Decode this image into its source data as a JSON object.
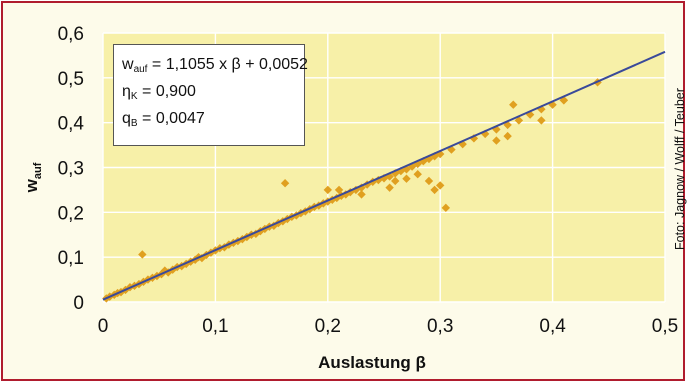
{
  "chart_data": {
    "type": "scatter",
    "title": "",
    "xlabel": "Auslastung β",
    "ylabel": {
      "main": "w",
      "sub": "auf"
    },
    "xlim": [
      0,
      0.5
    ],
    "ylim": [
      0,
      0.6
    ],
    "x_ticks": [
      "0",
      "0,1",
      "0,2",
      "0,3",
      "0,4",
      "0,5"
    ],
    "y_ticks": [
      "0",
      "0,1",
      "0,2",
      "0,3",
      "0,4",
      "0,5",
      "0,6"
    ],
    "grid": true,
    "series": [
      {
        "marker": "diamond",
        "color": "#e0a020",
        "points": [
          [
            0.003,
            0.008
          ],
          [
            0.006,
            0.012
          ],
          [
            0.01,
            0.016
          ],
          [
            0.013,
            0.02
          ],
          [
            0.016,
            0.022
          ],
          [
            0.02,
            0.027
          ],
          [
            0.024,
            0.033
          ],
          [
            0.028,
            0.036
          ],
          [
            0.032,
            0.04
          ],
          [
            0.035,
            0.106
          ],
          [
            0.036,
            0.045
          ],
          [
            0.04,
            0.05
          ],
          [
            0.044,
            0.054
          ],
          [
            0.048,
            0.058
          ],
          [
            0.052,
            0.062
          ],
          [
            0.055,
            0.07
          ],
          [
            0.058,
            0.066
          ],
          [
            0.062,
            0.072
          ],
          [
            0.066,
            0.078
          ],
          [
            0.07,
            0.08
          ],
          [
            0.074,
            0.085
          ],
          [
            0.078,
            0.09
          ],
          [
            0.082,
            0.094
          ],
          [
            0.085,
            0.1
          ],
          [
            0.088,
            0.098
          ],
          [
            0.092,
            0.105
          ],
          [
            0.096,
            0.11
          ],
          [
            0.1,
            0.115
          ],
          [
            0.104,
            0.12
          ],
          [
            0.108,
            0.122
          ],
          [
            0.112,
            0.128
          ],
          [
            0.116,
            0.132
          ],
          [
            0.12,
            0.136
          ],
          [
            0.124,
            0.14
          ],
          [
            0.128,
            0.145
          ],
          [
            0.132,
            0.15
          ],
          [
            0.136,
            0.152
          ],
          [
            0.14,
            0.158
          ],
          [
            0.144,
            0.163
          ],
          [
            0.148,
            0.168
          ],
          [
            0.152,
            0.17
          ],
          [
            0.156,
            0.176
          ],
          [
            0.16,
            0.18
          ],
          [
            0.164,
            0.185
          ],
          [
            0.168,
            0.19
          ],
          [
            0.172,
            0.193
          ],
          [
            0.176,
            0.198
          ],
          [
            0.18,
            0.202
          ],
          [
            0.184,
            0.207
          ],
          [
            0.188,
            0.212
          ],
          [
            0.192,
            0.215
          ],
          [
            0.196,
            0.22
          ],
          [
            0.2,
            0.224
          ],
          [
            0.204,
            0.228
          ],
          [
            0.208,
            0.232
          ],
          [
            0.212,
            0.237
          ],
          [
            0.216,
            0.24
          ],
          [
            0.22,
            0.245
          ],
          [
            0.225,
            0.25
          ],
          [
            0.23,
            0.255
          ],
          [
            0.235,
            0.262
          ],
          [
            0.24,
            0.268
          ],
          [
            0.245,
            0.272
          ],
          [
            0.25,
            0.276
          ],
          [
            0.255,
            0.28
          ],
          [
            0.26,
            0.287
          ],
          [
            0.265,
            0.292
          ],
          [
            0.27,
            0.296
          ],
          [
            0.275,
            0.302
          ],
          [
            0.28,
            0.308
          ],
          [
            0.285,
            0.314
          ],
          [
            0.29,
            0.319
          ],
          [
            0.295,
            0.325
          ],
          [
            0.3,
            0.33
          ],
          [
            0.31,
            0.34
          ],
          [
            0.32,
            0.352
          ],
          [
            0.33,
            0.365
          ],
          [
            0.34,
            0.375
          ],
          [
            0.35,
            0.385
          ],
          [
            0.36,
            0.395
          ],
          [
            0.37,
            0.405
          ],
          [
            0.38,
            0.418
          ],
          [
            0.39,
            0.43
          ],
          [
            0.4,
            0.44
          ],
          [
            0.41,
            0.45
          ],
          [
            0.44,
            0.49
          ],
          [
            0.162,
            0.265
          ],
          [
            0.2,
            0.25
          ],
          [
            0.255,
            0.255
          ],
          [
            0.28,
            0.285
          ],
          [
            0.29,
            0.27
          ],
          [
            0.295,
            0.25
          ],
          [
            0.3,
            0.26
          ],
          [
            0.305,
            0.21
          ],
          [
            0.35,
            0.36
          ],
          [
            0.36,
            0.37
          ],
          [
            0.365,
            0.44
          ],
          [
            0.39,
            0.405
          ],
          [
            0.41,
            0.45
          ],
          [
            0.23,
            0.24
          ],
          [
            0.21,
            0.25
          ],
          [
            0.26,
            0.27
          ],
          [
            0.27,
            0.275
          ]
        ]
      }
    ],
    "regression": {
      "slope": 1.1055,
      "intercept": 0.0052,
      "color": "#3a4a9a"
    },
    "annotations": {
      "equation": {
        "lhs": "w",
        "lhs_sub": "auf",
        "rhs": "= 1,1055 x β + 0,0052"
      },
      "eta": {
        "sym": "η",
        "sub": "K",
        "rhs": "= 0,900"
      },
      "q": {
        "sym": "q",
        "sub": "B",
        "rhs": "= 0,0047"
      }
    },
    "plot_bg": "#f7f0a8",
    "frame_color": "#b01c2e"
  },
  "credit": "Foto: Jagnow / Wolff / Teuber"
}
